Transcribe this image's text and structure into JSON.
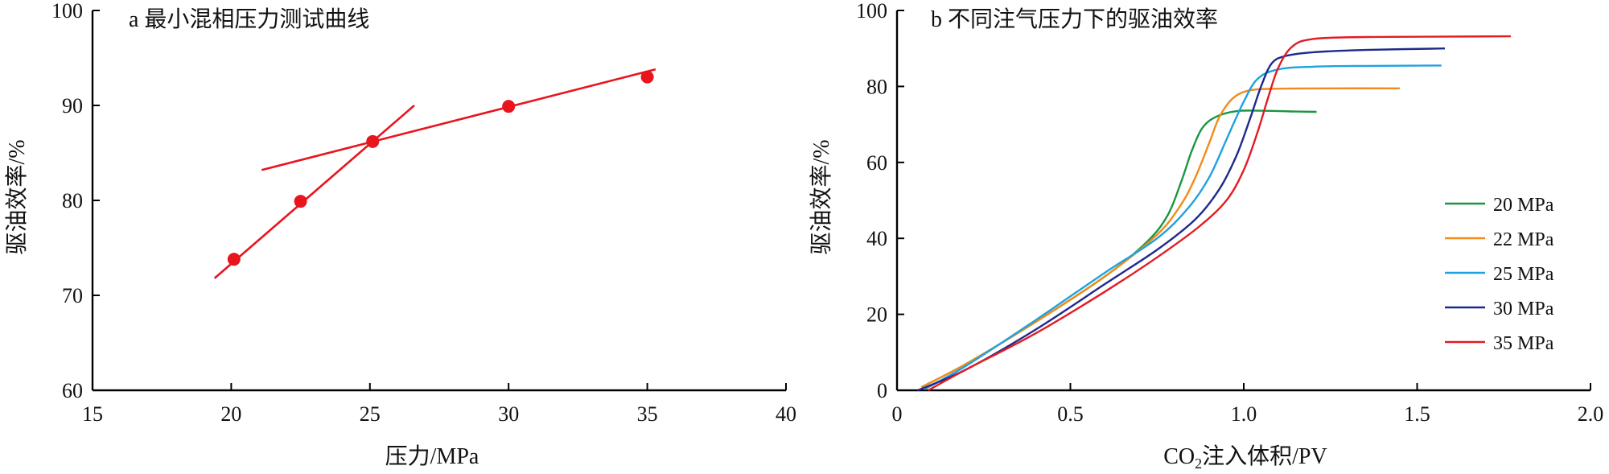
{
  "chart_data": [
    {
      "type": "scatter",
      "title": "a 最小混相压力测试曲线",
      "xlabel": "压力/MPa",
      "ylabel": "驱油效率/%",
      "xlim": [
        15,
        40
      ],
      "ylim": [
        60,
        100
      ],
      "xticks": [
        "15",
        "20",
        "25",
        "30",
        "35",
        "40"
      ],
      "yticks": [
        "60",
        "70",
        "80",
        "90",
        "100"
      ],
      "x": [
        20.1,
        22.5,
        25.1,
        30,
        35
      ],
      "y": [
        73.8,
        79.9,
        86.2,
        89.9,
        93
      ],
      "color": "#e8141e",
      "fit_lines": [
        {
          "x": [
            19.4,
            26.6
          ],
          "y": [
            71.8,
            90
          ]
        },
        {
          "x": [
            21.1,
            35.3
          ],
          "y": [
            83.2,
            93.8
          ]
        }
      ],
      "grid": false
    },
    {
      "type": "line",
      "title": "b 不同注气压力下的驱油效率",
      "xlabel": "CO2注入体积/PV",
      "xlabel_parts": {
        "pre": "CO",
        "sub": "2",
        "post": "注入体积/PV"
      },
      "ylabel": "驱油效率/%",
      "xlim": [
        0,
        2.0
      ],
      "ylim": [
        0,
        100
      ],
      "xticks": [
        "0",
        "0.5",
        "1.0",
        "1.5",
        "2.0"
      ],
      "yticks": [
        "0",
        "20",
        "40",
        "60",
        "80",
        "100"
      ],
      "legend_position": "right",
      "grid": false,
      "series": [
        {
          "name": "20 MPa",
          "color": "#1a9641",
          "x": [
            0.07,
            0.2,
            0.4,
            0.6,
            0.72,
            0.78,
            0.82,
            0.85,
            0.88,
            0.92,
            0.98,
            1.05,
            1.15,
            1.21
          ],
          "y": [
            0.8,
            7,
            18,
            30,
            39,
            46,
            55,
            63,
            69,
            72,
            73.5,
            73.6,
            73.4,
            73.3
          ]
        },
        {
          "name": "22 MPa",
          "color": "#f28b1a",
          "x": [
            0.07,
            0.2,
            0.4,
            0.6,
            0.75,
            0.82,
            0.86,
            0.9,
            0.93,
            0.97,
            1.02,
            1.1,
            1.25,
            1.45
          ],
          "y": [
            0.8,
            7,
            18,
            30,
            41,
            49,
            56,
            65,
            72,
            77,
            79,
            79.4,
            79.5,
            79.5
          ]
        },
        {
          "name": "25 MPa",
          "color": "#1fa2e0",
          "x": [
            0.08,
            0.2,
            0.4,
            0.6,
            0.75,
            0.84,
            0.9,
            0.95,
            1.0,
            1.04,
            1.1,
            1.2,
            1.35,
            1.57
          ],
          "y": [
            0.3,
            6.5,
            18.5,
            31,
            40,
            48,
            56,
            66,
            76,
            82,
            84.5,
            85.2,
            85.4,
            85.5
          ]
        },
        {
          "name": "30 MPa",
          "color": "#1e2a8c",
          "x": [
            0.06,
            0.2,
            0.4,
            0.6,
            0.75,
            0.86,
            0.93,
            0.98,
            1.02,
            1.05,
            1.08,
            1.12,
            1.2,
            1.35,
            1.58
          ],
          "y": [
            0,
            5.5,
            16,
            28,
            37,
            45,
            53,
            62,
            72,
            80,
            86,
            88,
            89,
            89.6,
            90
          ]
        },
        {
          "name": "35 MPa",
          "color": "#e31b23",
          "x": [
            0.09,
            0.2,
            0.4,
            0.6,
            0.75,
            0.87,
            0.95,
            1.0,
            1.04,
            1.07,
            1.1,
            1.14,
            1.2,
            1.35,
            1.55,
            1.77
          ],
          "y": [
            0,
            5.5,
            15,
            26,
            35,
            43,
            50,
            58,
            68,
            77,
            85,
            90.5,
            92.5,
            93,
            93.1,
            93.2
          ]
        }
      ]
    }
  ]
}
